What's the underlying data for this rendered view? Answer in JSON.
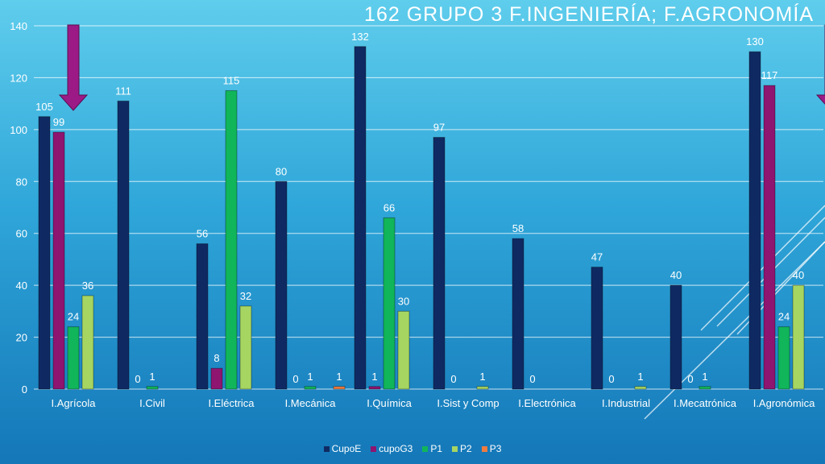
{
  "chart_data": {
    "type": "bar",
    "title": "162  GRUPO 3  F.INGENIERÍA;  F.AGRONOMÍA",
    "categories": [
      "I.Agrícola",
      "I.Civil",
      "I.Eléctrica",
      "I.Mecánica",
      "I.Química",
      "I.Sist y Comp",
      "I.Electrónica",
      "I.Industrial",
      "I.Mecatrónica",
      "I.Agronómica"
    ],
    "ylim": [
      0,
      140
    ],
    "yticks": [
      0,
      20,
      40,
      60,
      80,
      100,
      120,
      140
    ],
    "grid": true,
    "legend_position": "bottom",
    "series": [
      {
        "name": "CupoE",
        "color": "#0f2a63",
        "values": [
          105,
          111,
          56,
          80,
          132,
          97,
          58,
          47,
          40,
          130
        ]
      },
      {
        "name": "cupoG3",
        "color": "#8e1570",
        "values": [
          99,
          0,
          8,
          0,
          1,
          0,
          0,
          0,
          0,
          117
        ]
      },
      {
        "name": "P1",
        "color": "#11b55a",
        "values": [
          24,
          1,
          115,
          1,
          66,
          0,
          0,
          0,
          1,
          24
        ]
      },
      {
        "name": "P2",
        "color": "#a6d562",
        "values": [
          36,
          0,
          32,
          0,
          30,
          1,
          0,
          1,
          0,
          40
        ]
      },
      {
        "name": "P3",
        "color": "#f07b3f",
        "values": [
          0,
          0,
          0,
          1,
          0,
          0,
          0,
          0,
          0,
          0
        ]
      }
    ],
    "data_labels": [
      {
        "category": "I.Agrícola",
        "series": "CupoE",
        "text": "105"
      },
      {
        "category": "I.Agrícola",
        "series": "cupoG3",
        "text": "99"
      },
      {
        "category": "I.Agrícola",
        "series": "P1",
        "text": "24"
      },
      {
        "category": "I.Agrícola",
        "series": "P2",
        "text": "36"
      },
      {
        "category": "I.Civil",
        "series": "CupoE",
        "text": "111"
      },
      {
        "category": "I.Civil",
        "series": "cupoG3",
        "text": "0"
      },
      {
        "category": "I.Civil",
        "series": "P1",
        "text": "1"
      },
      {
        "category": "I.Eléctrica",
        "series": "CupoE",
        "text": "56"
      },
      {
        "category": "I.Eléctrica",
        "series": "cupoG3",
        "text": "8"
      },
      {
        "category": "I.Eléctrica",
        "series": "P1",
        "text": "115"
      },
      {
        "category": "I.Eléctrica",
        "series": "P2",
        "text": "32"
      },
      {
        "category": "I.Mecánica",
        "series": "CupoE",
        "text": "80"
      },
      {
        "category": "I.Mecánica",
        "series": "cupoG3",
        "text": "0"
      },
      {
        "category": "I.Mecánica",
        "series": "P1",
        "text": "1"
      },
      {
        "category": "I.Mecánica",
        "series": "P3",
        "text": "1"
      },
      {
        "category": "I.Química",
        "series": "CupoE",
        "text": "132"
      },
      {
        "category": "I.Química",
        "series": "cupoG3",
        "text": "1"
      },
      {
        "category": "I.Química",
        "series": "P1",
        "text": "66"
      },
      {
        "category": "I.Química",
        "series": "P2",
        "text": "30"
      },
      {
        "category": "I.Sist y Comp",
        "series": "CupoE",
        "text": "97"
      },
      {
        "category": "I.Sist y Comp",
        "series": "cupoG3",
        "text": "0"
      },
      {
        "category": "I.Sist y Comp",
        "series": "P2",
        "text": "1"
      },
      {
        "category": "I.Electrónica",
        "series": "CupoE",
        "text": "58"
      },
      {
        "category": "I.Electrónica",
        "series": "cupoG3",
        "text": "0"
      },
      {
        "category": "I.Industrial",
        "series": "CupoE",
        "text": "47"
      },
      {
        "category": "I.Industrial",
        "series": "cupoG3",
        "text": "0"
      },
      {
        "category": "I.Industrial",
        "series": "P2",
        "text": "1"
      },
      {
        "category": "I.Mecatrónica",
        "series": "CupoE",
        "text": "40"
      },
      {
        "category": "I.Mecatrónica",
        "series": "cupoG3",
        "text": "0"
      },
      {
        "category": "I.Mecatrónica",
        "series": "P1",
        "text": "1"
      },
      {
        "category": "I.Agronómica",
        "series": "CupoE",
        "text": "130"
      },
      {
        "category": "I.Agronómica",
        "series": "cupoG3",
        "text": "117"
      },
      {
        "category": "I.Agronómica",
        "series": "P1",
        "text": "24"
      },
      {
        "category": "I.Agronómica",
        "series": "P2",
        "text": "40"
      }
    ],
    "annotations": [
      {
        "type": "arrow-down",
        "color": "#9b1a86",
        "category": "I.Agrícola"
      },
      {
        "type": "arrow-down",
        "color": "#9b1a86",
        "category": "I.Agronómica"
      }
    ]
  }
}
